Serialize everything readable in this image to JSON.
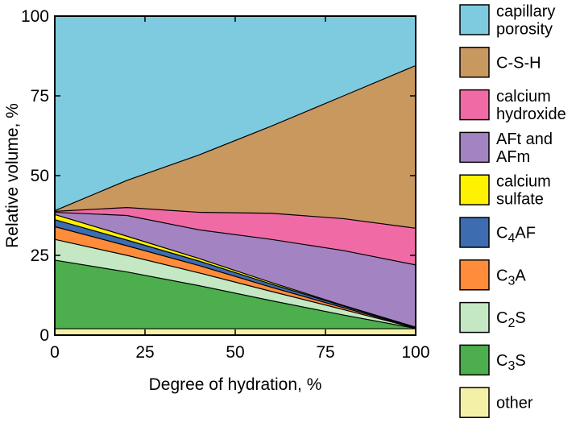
{
  "chart_data": {
    "type": "area",
    "title": "",
    "xlabel": "Degree of hydration, %",
    "ylabel": "Relative volume, %",
    "xlim": [
      0,
      100
    ],
    "ylim": [
      0,
      100
    ],
    "x_ticks": [
      0,
      25,
      50,
      75,
      100
    ],
    "y_ticks": [
      0,
      25,
      50,
      75,
      100
    ],
    "x_tick_labels": [
      "0",
      "25",
      "50",
      "75",
      "100"
    ],
    "y_tick_labels": [
      "0",
      "25",
      "50",
      "75",
      "100"
    ],
    "legend_position": "right",
    "x": [
      0,
      20,
      40,
      60,
      80,
      100
    ],
    "boundaries_note": "each series gives the cumulative upper boundary of its band (stacked from bottom)",
    "series": [
      {
        "name": "other",
        "color": "#f5f0a8",
        "lines": [
          "other"
        ],
        "upper": [
          2,
          2,
          2,
          2,
          2,
          2
        ]
      },
      {
        "name": "C3S",
        "color": "#4cae4c",
        "lines": [
          "C",
          "3",
          "S"
        ],
        "upper": [
          23.5,
          19.8,
          15.5,
          10.8,
          6.3,
          2.1
        ]
      },
      {
        "name": "C2S",
        "color": "#c3e8c3",
        "lines": [
          "C",
          "2",
          "S"
        ],
        "upper": [
          30,
          25,
          19.5,
          13.7,
          8,
          2.2
        ]
      },
      {
        "name": "C3A",
        "color": "#ff8c3a",
        "lines": [
          "C",
          "3",
          "A"
        ],
        "upper": [
          34,
          28,
          21.8,
          15,
          8.6,
          2.3
        ]
      },
      {
        "name": "C4AF",
        "color": "#3d6cb0",
        "lines": [
          "C",
          "4",
          "AF"
        ],
        "upper": [
          36.2,
          29.8,
          23.2,
          16,
          9.1,
          2.4
        ]
      },
      {
        "name": "calcium sulfate",
        "color": "#fff200",
        "lines": [
          "calcium",
          "sulfate"
        ],
        "upper": [
          37.8,
          31,
          24,
          16.5,
          9.3,
          2.5
        ]
      },
      {
        "name": "AFt and AFm",
        "color": "#a383c2",
        "lines": [
          "AFt and",
          "AFm"
        ],
        "upper": [
          38.5,
          37.5,
          33,
          30,
          26.5,
          22
        ]
      },
      {
        "name": "calcium hydroxide",
        "color": "#f06aa5",
        "lines": [
          "calcium",
          "hydroxide"
        ],
        "upper": [
          38.8,
          40,
          38.5,
          38.2,
          36.5,
          33.5
        ]
      },
      {
        "name": "C-S-H",
        "color": "#c9985f",
        "lines": [
          "C-S-H"
        ],
        "upper": [
          39,
          48.5,
          56.5,
          65.5,
          75,
          84.5
        ]
      },
      {
        "name": "capillary porosity",
        "color": "#7ecbe0",
        "lines": [
          "capillary",
          "porosity"
        ],
        "upper": [
          100,
          100,
          100,
          100,
          100,
          100
        ]
      }
    ],
    "legend_order": [
      "capillary porosity",
      "C-S-H",
      "calcium hydroxide",
      "AFt and AFm",
      "calcium sulfate",
      "C4AF",
      "C3A",
      "C2S",
      "C3S",
      "other"
    ]
  }
}
